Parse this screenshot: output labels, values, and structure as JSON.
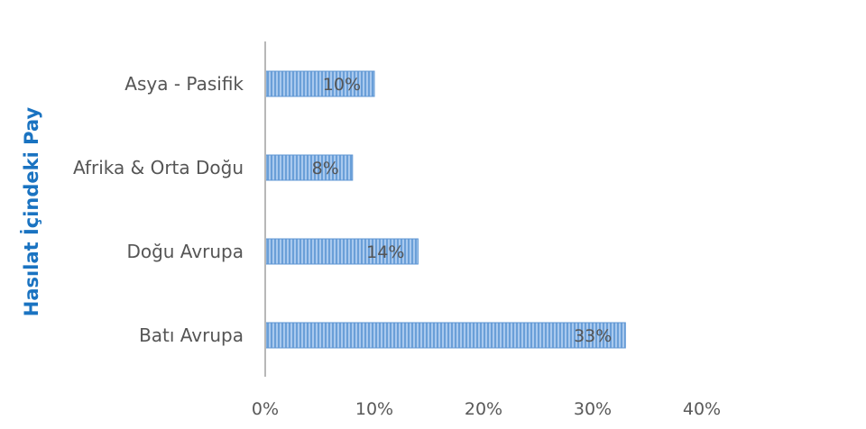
{
  "chart_data": {
    "type": "bar",
    "orientation": "horizontal",
    "title": "",
    "xlabel": "",
    "ylabel": "Hasılat İçindeki Pay",
    "categories": [
      "Asya  - Pasifik",
      "Afrika & Orta Doğu",
      "Doğu Avrupa",
      "Batı Avrupa"
    ],
    "values": [
      10,
      8,
      14,
      33
    ],
    "data_labels": [
      "10%",
      "8%",
      "14%",
      "33%"
    ],
    "xlim": [
      0,
      40
    ],
    "x_ticks": [
      0,
      10,
      20,
      30,
      40
    ],
    "x_tick_labels": [
      "0%",
      "10%",
      "20%",
      "30%",
      "40%"
    ],
    "grid": false,
    "legend": "none",
    "bar_color": "#8fb8e6",
    "bar_stripe_color": "#5d95d3",
    "axis_title_color": "#1a73c1"
  }
}
